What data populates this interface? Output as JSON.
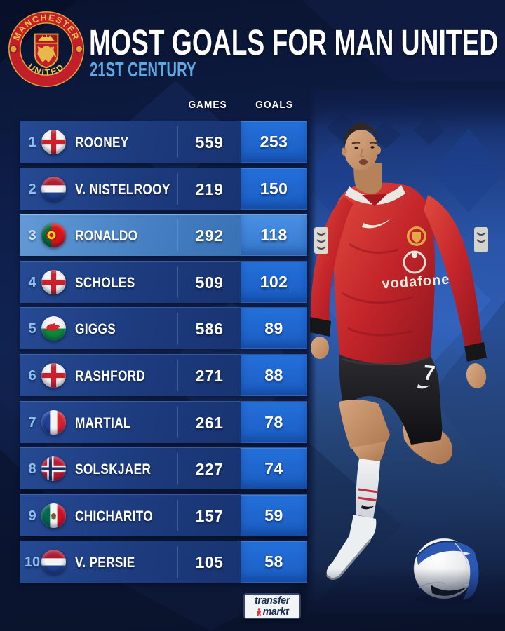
{
  "chart_data": {
    "type": "table",
    "title": "MOST GOALS FOR MAN UNITED",
    "subtitle": "21ST CENTURY",
    "columns": [
      "GAMES",
      "GOALS"
    ],
    "players": [
      {
        "rank": "1",
        "nationality": "england",
        "name": "ROONEY",
        "games": "559",
        "goals": "253",
        "highlighted": false
      },
      {
        "rank": "2",
        "nationality": "netherlands",
        "name": "V. NISTELROOY",
        "games": "219",
        "goals": "150",
        "highlighted": false
      },
      {
        "rank": "3",
        "nationality": "portugal",
        "name": "RONALDO",
        "games": "292",
        "goals": "118",
        "highlighted": true
      },
      {
        "rank": "4",
        "nationality": "england",
        "name": "SCHOLES",
        "games": "509",
        "goals": "102",
        "highlighted": false
      },
      {
        "rank": "5",
        "nationality": "wales",
        "name": "GIGGS",
        "games": "586",
        "goals": "89",
        "highlighted": false
      },
      {
        "rank": "6",
        "nationality": "england",
        "name": "RASHFORD",
        "games": "271",
        "goals": "88",
        "highlighted": false
      },
      {
        "rank": "7",
        "nationality": "france",
        "name": "MARTIAL",
        "games": "261",
        "goals": "78",
        "highlighted": false
      },
      {
        "rank": "8",
        "nationality": "norway",
        "name": "SOLSKJAER",
        "games": "227",
        "goals": "74",
        "highlighted": false
      },
      {
        "rank": "9",
        "nationality": "mexico",
        "name": "CHICHARITO",
        "games": "157",
        "goals": "59",
        "highlighted": false
      },
      {
        "rank": "10",
        "nationality": "netherlands",
        "name": "V. PERSIE",
        "games": "105",
        "goals": "58",
        "highlighted": false
      }
    ]
  },
  "crest": {
    "top_text": "MANCHESTER",
    "bottom_text": "UNITED"
  },
  "player": {
    "shirt_sponsor": "vodafone",
    "shirt_number": "7"
  },
  "footer": {
    "logo_line1": "transfer",
    "logo_line2": "markt"
  },
  "colors": {
    "background_navy": "#0e1d48",
    "row_blue": "#1c3a7c",
    "goals_box_blue": "#1e63cc",
    "highlight_row_blue": "#4580c2",
    "rank_light_blue": "#8cc1ef",
    "subtitle_blue": "#5fa8e3",
    "shirt_red": "#c3252a"
  }
}
